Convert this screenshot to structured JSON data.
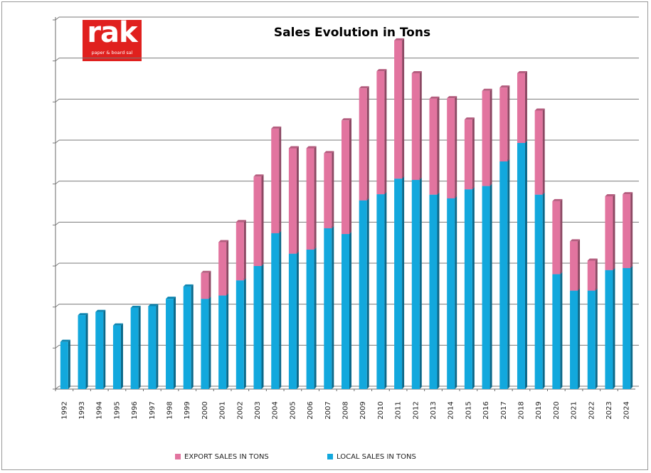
{
  "logo": {
    "word": "rak",
    "subtitle": "paper & board sal"
  },
  "chart_data": {
    "type": "bar",
    "stacked": true,
    "title": "Sales Evolution in Tons",
    "xlabel": "",
    "ylabel": "",
    "ylim": [
      0,
      9
    ],
    "y_tick_labels_shown": false,
    "grid": true,
    "legend_position": "bottom",
    "categories": [
      "1992",
      "1993",
      "1994",
      "1995",
      "1996",
      "1997",
      "1998",
      "1999",
      "2000",
      "2001",
      "2002",
      "2003",
      "2004",
      "2005",
      "2006",
      "2007",
      "2008",
      "2009",
      "2010",
      "2011",
      "2012",
      "2013",
      "2014",
      "2015",
      "2016",
      "2017",
      "2018",
      "2019",
      "2020",
      "2021",
      "2022",
      "2023",
      "2024"
    ],
    "series": [
      {
        "name": "LOCAL SALES IN TONS",
        "color": "#12a8dd",
        "values": [
          1.15,
          1.8,
          1.88,
          1.55,
          1.98,
          2.02,
          2.2,
          2.5,
          2.2,
          2.28,
          2.65,
          3.0,
          3.8,
          3.3,
          3.4,
          3.92,
          3.78,
          4.6,
          4.75,
          5.13,
          5.1,
          4.74,
          4.65,
          4.87,
          4.95,
          5.55,
          6.0,
          4.74,
          2.8,
          2.4,
          2.4,
          2.9,
          2.95
        ]
      },
      {
        "name": "EXPORT SALES IN TONS",
        "color": "#e2749f",
        "values": [
          0,
          0,
          0,
          0,
          0,
          0,
          0,
          0,
          0.63,
          1.3,
          1.42,
          2.18,
          2.55,
          2.57,
          2.47,
          1.83,
          2.77,
          2.73,
          3.0,
          3.37,
          2.6,
          2.34,
          2.44,
          1.7,
          2.32,
          1.8,
          1.7,
          2.05,
          1.78,
          1.2,
          0.73,
          1.8,
          1.8
        ]
      }
    ],
    "legend": [
      "EXPORT SALES IN TONS",
      "LOCAL SALES IN TONS"
    ]
  }
}
